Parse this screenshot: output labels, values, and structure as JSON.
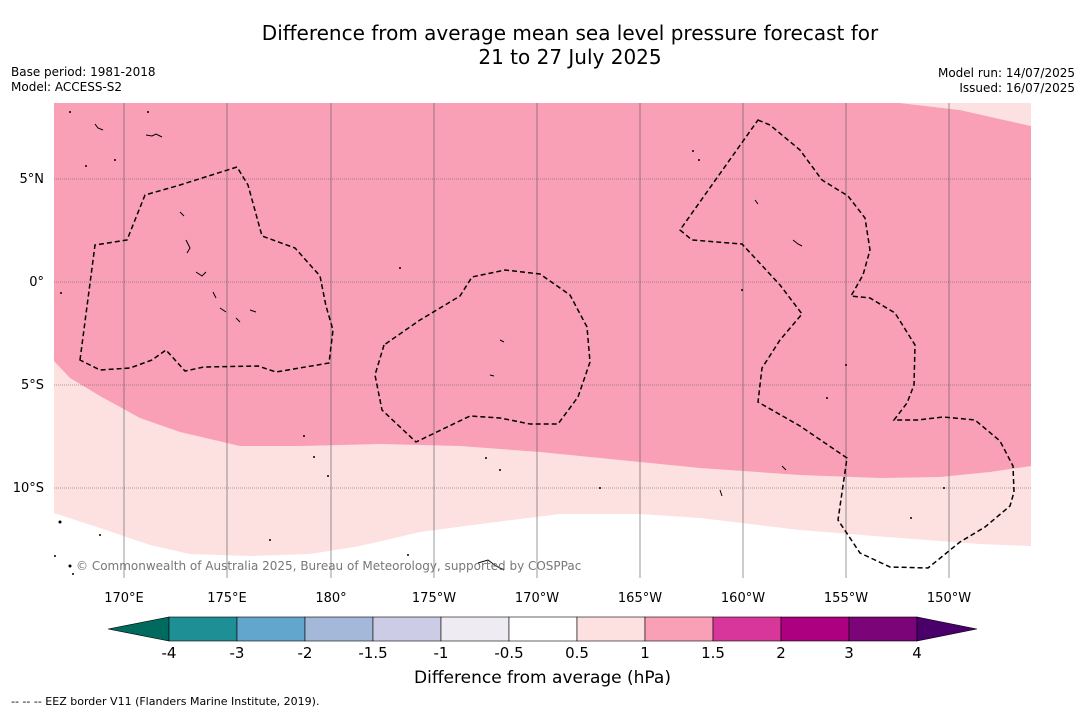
{
  "title": {
    "line1": "Difference from average mean sea level pressure forecast for",
    "line2": "21 to 27 July 2025"
  },
  "meta_left": {
    "base_period": "Base period: 1981-2018",
    "model": "Model: ACCESS-S2"
  },
  "meta_right": {
    "model_run": "Model run: 14/07/2025",
    "issued": "Issued: 16/07/2025"
  },
  "map": {
    "longitude_ticks": [
      "170°E",
      "175°E",
      "180°",
      "175°W",
      "170°W",
      "165°W",
      "160°W",
      "155°W",
      "150°W"
    ],
    "latitude_ticks": [
      "5°N",
      "0°",
      "5°S",
      "10°S"
    ],
    "copyright": "© Commonwealth of Australia 2025, Bureau of Meteorology, supported by COSPPac",
    "colors": {
      "band_1_to_1_5": "#f9a0b7",
      "band_0_5_to_1": "#fde0e0",
      "band_below_0_5": "#ffffff"
    }
  },
  "colorbar": {
    "ticks": [
      "-4",
      "-3",
      "-2",
      "-1.5",
      "-1",
      "-0.5",
      "0.5",
      "1",
      "1.5",
      "2",
      "3",
      "4"
    ],
    "colors": [
      "#006a5f",
      "#1f8f96",
      "#62a6ce",
      "#a4b9da",
      "#cdcce6",
      "#eeebf2",
      "#ffffff",
      "#fde0e0",
      "#f9a0b7",
      "#d8369a",
      "#ac0080",
      "#7a0478",
      "#4a006a"
    ],
    "label": "Difference from average (hPa)"
  },
  "footnote": "--  --  -- EEZ border V11 (Flanders Marine Institute, 2019)."
}
